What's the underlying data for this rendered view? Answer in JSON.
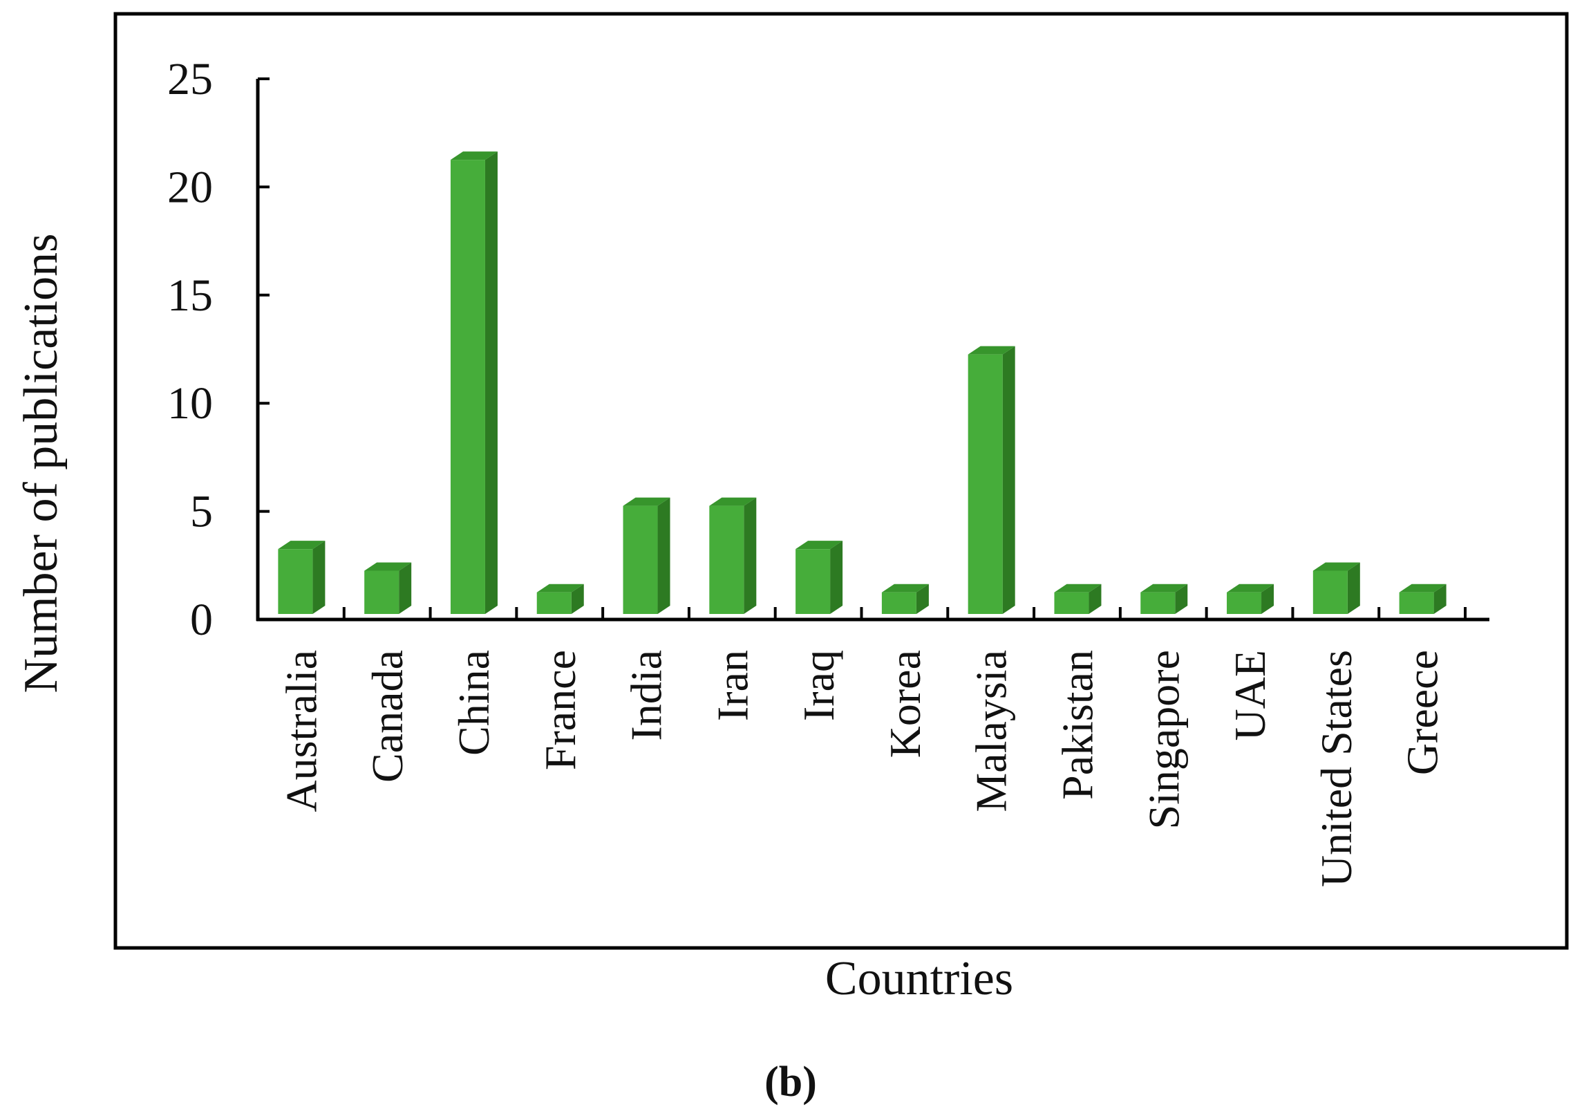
{
  "chart_data": {
    "type": "bar",
    "style": "3d-column",
    "title": "",
    "xlabel": "Countries",
    "ylabel": "Number of publications",
    "ylim": [
      0,
      25
    ],
    "yticks": [
      "0",
      "5",
      "10",
      "15",
      "20",
      "25"
    ],
    "grid": false,
    "legend": "none",
    "categories": [
      "Australia",
      "Canada",
      "China",
      "France",
      "India",
      "Iran",
      "Iraq",
      "Korea",
      "Malaysia",
      "Pakistan",
      "Singapore",
      "UAE",
      "United States",
      "Greece"
    ],
    "values": [
      3,
      2,
      21,
      1,
      5,
      5,
      3,
      1,
      12,
      1,
      1,
      1,
      2,
      1
    ],
    "colors": {
      "bar_front": "#46ad3a",
      "bar_side": "#2d7a22",
      "bar_top": "#37952c",
      "axis": "#000000",
      "frame": "#000000"
    }
  },
  "caption": "(b)"
}
